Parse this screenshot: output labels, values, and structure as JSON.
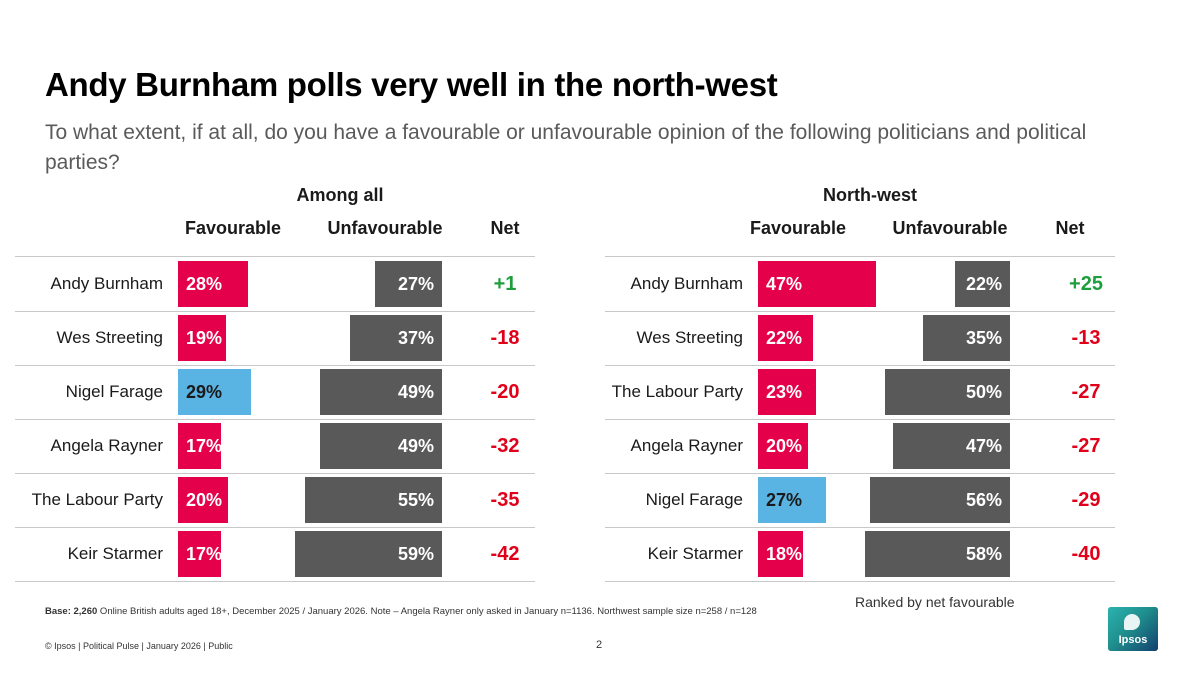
{
  "slide": {
    "title": "Andy Burnham polls very well in the north-west",
    "subtitle": "To what extent, if at all, do you have a favourable or unfavourable opinion of the following politicians and political parties?",
    "footnote_bold": "Base: 2,260",
    "footnote_text": " Online British adults aged 18+,  December 2025 / January 2026. Note – Angela Rayner only asked in January n=1136.  Northwest sample size n=258 / n=128",
    "ranked_note": "Ranked by net favourable",
    "copyright": "© Ipsos | Political Pulse | January 2026 | Public",
    "page_number": "2",
    "logo_text": "Ipsos"
  },
  "colors": {
    "favourable": "#e5004c",
    "reform_favourable": "#5ab4e3",
    "unfavourable": "#595959",
    "net_positive": "#1e9e3c",
    "net_negative": "#e0001a"
  },
  "chart_data": [
    {
      "type": "bar",
      "title": "Among all",
      "columns": [
        "Favourable",
        "Unfavourable",
        "Net"
      ],
      "unit": "%",
      "categories": [
        "Andy Burnham",
        "Wes Streeting",
        "Nigel Farage",
        "Angela Rayner",
        "The Labour Party",
        "Keir Starmer"
      ],
      "highlight": [
        "",
        "",
        "blue",
        "",
        "",
        ""
      ],
      "series": [
        {
          "name": "Favourable",
          "values": [
            28,
            19,
            29,
            17,
            20,
            17
          ],
          "labels": [
            "28%",
            "19%",
            "29%",
            "17%",
            "20%",
            "17%"
          ]
        },
        {
          "name": "Unfavourable",
          "values": [
            27,
            37,
            49,
            49,
            55,
            59
          ],
          "labels": [
            "27%",
            "37%",
            "49%",
            "49%",
            "55%",
            "59%"
          ]
        }
      ],
      "net": [
        "+1",
        "-18",
        "-20",
        "-32",
        "-35",
        "-42"
      ]
    },
    {
      "type": "bar",
      "title": "North-west",
      "columns": [
        "Favourable",
        "Unfavourable",
        "Net"
      ],
      "unit": "%",
      "categories": [
        "Andy Burnham",
        "Wes Streeting",
        "The Labour Party",
        "Angela Rayner",
        "Nigel Farage",
        "Keir Starmer"
      ],
      "highlight": [
        "",
        "",
        "",
        "",
        "blue",
        ""
      ],
      "series": [
        {
          "name": "Favourable",
          "values": [
            47,
            22,
            23,
            20,
            27,
            18
          ],
          "labels": [
            "47%",
            "22%",
            "23%",
            "20%",
            "27%",
            "18%"
          ]
        },
        {
          "name": "Unfavourable",
          "values": [
            22,
            35,
            50,
            47,
            56,
            58
          ],
          "labels": [
            "22%",
            "35%",
            "50%",
            "47%",
            "56%",
            "58%"
          ]
        }
      ],
      "net": [
        "+25",
        "-13",
        "-27",
        "-27",
        "-29",
        "-40"
      ]
    }
  ]
}
